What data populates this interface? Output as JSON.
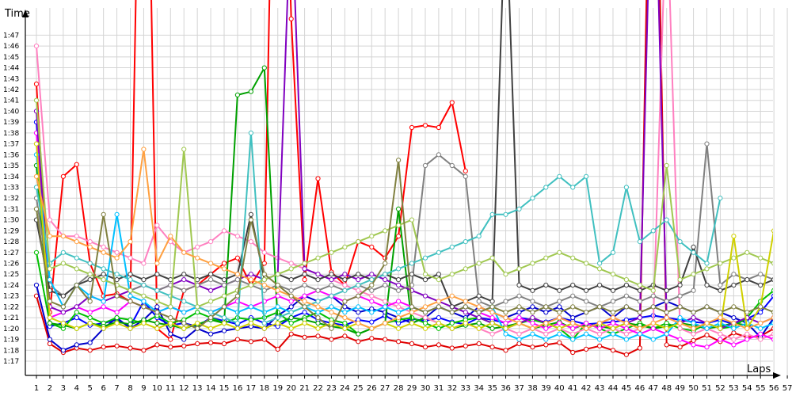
{
  "chart_data": {
    "type": "line",
    "ylabel": "Time",
    "xlabel": "Laps",
    "xlim": [
      1,
      57
    ],
    "ylim": [
      "1:16",
      "1:48"
    ],
    "grid": true,
    "legend": "none",
    "categories": [
      "1",
      "2",
      "3",
      "4",
      "5",
      "6",
      "7",
      "8",
      "9",
      "10",
      "11",
      "12",
      "13",
      "14",
      "15",
      "16",
      "17",
      "18",
      "19",
      "20",
      "21",
      "22",
      "23",
      "24",
      "25",
      "26",
      "27",
      "28",
      "29",
      "30",
      "31",
      "32",
      "33",
      "34",
      "35",
      "36",
      "37",
      "38",
      "39",
      "40",
      "41",
      "42",
      "43",
      "44",
      "45",
      "46",
      "47",
      "48",
      "49",
      "50",
      "51",
      "52",
      "53",
      "54",
      "55",
      "56",
      "57"
    ],
    "y_tick_labels": [
      "1:17",
      "1:18",
      "1:19",
      "1:20",
      "1:21",
      "1:22",
      "1:23",
      "1:24",
      "1:25",
      "1:26",
      "1:27",
      "1:28",
      "1:29",
      "1:30",
      "1:31",
      "1:32",
      "1:33",
      "1:34",
      "1:35",
      "1:36",
      "1:37",
      "1:38",
      "1:39",
      "1:40",
      "1:41",
      "1:42",
      "1:43",
      "1:44",
      "1:45",
      "1:46",
      "1:47"
    ],
    "series": [
      {
        "color": "#ff0000",
        "values": [
          102.5,
          81.5,
          94.0,
          95.1,
          86.0,
          83.0,
          83.2,
          82.5,
          150,
          80.0,
          79.0,
          83.5,
          84.0,
          85.0,
          86.0,
          86.5,
          84.0,
          86.0,
          150,
          108.5,
          84.5,
          93.8,
          85.2,
          84.0,
          88.0,
          87.5,
          86.5,
          88.5,
          98.5,
          98.7,
          98.5,
          100.8,
          94.5,
          null,
          null,
          null,
          null,
          null,
          null,
          null,
          null,
          null,
          null,
          null,
          null,
          null,
          null,
          null,
          null,
          null,
          null,
          null,
          null,
          null,
          null,
          null,
          null
        ]
      },
      {
        "color": "#e00000",
        "values": [
          83.0,
          78.6,
          77.8,
          78.2,
          78.0,
          78.3,
          78.4,
          78.2,
          78.0,
          78.5,
          78.3,
          78.4,
          78.6,
          78.7,
          78.6,
          79.0,
          78.8,
          79.0,
          78.1,
          79.5,
          79.2,
          79.3,
          79.0,
          79.3,
          78.8,
          79.1,
          79.0,
          78.8,
          78.6,
          78.3,
          78.5,
          78.2,
          78.4,
          78.6,
          78.3,
          78.0,
          78.6,
          78.3,
          78.5,
          78.7,
          77.8,
          78.1,
          78.4,
          78.0,
          77.6,
          78.2,
          143,
          78.5,
          78.3,
          78.9,
          79.4,
          78.8,
          79.6,
          79.2,
          79.3,
          80.0,
          85.0
        ]
      },
      {
        "color": "#0000ff",
        "values": [
          99.0,
          80.2,
          80.5,
          81.0,
          80.3,
          80.5,
          80.8,
          80.2,
          82.5,
          81.0,
          80.3,
          80.5,
          80.2,
          81.0,
          80.7,
          80.4,
          81.0,
          80.5,
          80.2,
          81.0,
          81.5,
          80.8,
          80.5,
          80.3,
          80.8,
          80.6,
          81.2,
          80.5,
          80.9,
          80.7,
          81.0,
          80.6,
          80.4,
          81.0,
          80.8,
          80.5,
          81.0,
          80.8,
          80.6,
          81.0,
          80.7,
          80.4,
          80.5,
          80.6,
          80.8,
          81.0,
          81.2,
          81.0,
          80.8,
          80.6,
          80.5,
          80.8,
          80.4,
          80.9,
          81.5,
          83.0,
          80.5
        ]
      },
      {
        "color": "#0000cc",
        "values": [
          84.0,
          79.0,
          78.0,
          78.5,
          78.7,
          80.0,
          81.0,
          80.0,
          80.8,
          82.0,
          79.5,
          79.0,
          80.0,
          79.5,
          79.8,
          80.0,
          80.2,
          80.0,
          81.2,
          82.0,
          83.0,
          82.5,
          83.0,
          82.0,
          81.5,
          81.8,
          81.5,
          81.0,
          80.5,
          81.0,
          82.0,
          81.5,
          81.0,
          82.0,
          81.5,
          81.0,
          81.5,
          82.0,
          81.5,
          82.0,
          81.0,
          81.5,
          82.0,
          81.0,
          82.0,
          81.5,
          82.0,
          82.5,
          82.0,
          81.5,
          82.0,
          81.5,
          81.0,
          80.5,
          79.2,
          81.0,
          82.0
        ]
      },
      {
        "color": "#00c000",
        "values": [
          87.0,
          80.5,
          80.0,
          81.5,
          81.0,
          80.5,
          81.0,
          80.8,
          80.5,
          81.2,
          80.5,
          80.8,
          81.5,
          81.0,
          80.5,
          81.0,
          80.8,
          81.0,
          81.5,
          80.5,
          81.0,
          81.5,
          80.8,
          80.5,
          79.5,
          80.0,
          80.5,
          80.8,
          81.0,
          80.5,
          80.0,
          80.5,
          80.8,
          81.0,
          80.5,
          80.0,
          80.5,
          80.8,
          80.5,
          80.0,
          79.0,
          80.5,
          80.0,
          79.5,
          80.0,
          80.5,
          80.0,
          80.5,
          80.0,
          79.8,
          80.5,
          80.0,
          80.2,
          81.0,
          82.5,
          83.5,
          83.0
        ]
      },
      {
        "color": "#00a000",
        "values": [
          95.0,
          80.5,
          80.3,
          80.0,
          80.5,
          80.2,
          80.6,
          80.4,
          80.8,
          80.5,
          80.3,
          80.0,
          80.4,
          80.8,
          80.5,
          101.5,
          101.8,
          104.0,
          80.5,
          81.0,
          80.8,
          80.5,
          80.2,
          80.0,
          79.5,
          80.0,
          80.5,
          91.0,
          80.5,
          81.0,
          80.5,
          80.0,
          80.3,
          80.5,
          80.0,
          80.2,
          80.5,
          80.0,
          80.3,
          80.6,
          80.0,
          80.4,
          80.2,
          80.0,
          80.5,
          80.3,
          80.0,
          80.2,
          80.5,
          80.3,
          80.0,
          80.2,
          80.5,
          80.3,
          null,
          null,
          null
        ]
      },
      {
        "color": "#ff80c0",
        "values": [
          106.0,
          90.0,
          88.5,
          88.5,
          88.0,
          87.5,
          87.0,
          86.5,
          86.0,
          89.5,
          88.0,
          87.0,
          87.5,
          88.0,
          89.0,
          88.5,
          88.0,
          87.0,
          86.5,
          86.0,
          85.5,
          85.0,
          84.5,
          84.0,
          83.5,
          83.0,
          82.5,
          82.0,
          81.5,
          81.0,
          80.5,
          80.0,
          80.5,
          80.0,
          79.5,
          80.0,
          79.5,
          80.0,
          79.5,
          80.0,
          79.5,
          80.0,
          79.5,
          80.0,
          79.5,
          80.0,
          80.5,
          120,
          80.0,
          79.5,
          80.0,
          79.5,
          79.0,
          79.5,
          79.0,
          79.5,
          79.0
        ]
      },
      {
        "color": "#ff00ff",
        "values": [
          98.0,
          81.0,
          81.5,
          82.0,
          81.5,
          82.0,
          81.5,
          82.5,
          82.0,
          81.5,
          82.0,
          81.5,
          82.0,
          81.5,
          82.0,
          82.5,
          82.0,
          82.5,
          83.0,
          82.5,
          83.0,
          83.5,
          83.0,
          82.5,
          83.0,
          82.5,
          82.0,
          82.5,
          82.0,
          81.5,
          82.0,
          81.5,
          82.0,
          81.5,
          81.0,
          80.5,
          81.0,
          80.5,
          80.0,
          80.5,
          80.0,
          80.5,
          80.0,
          80.5,
          80.0,
          79.5,
          80.0,
          79.5,
          79.0,
          78.5,
          78.3,
          79.0,
          78.5,
          79.0,
          79.5,
          79.0,
          79.5
        ]
      },
      {
        "color": "#8000c0",
        "values": [
          100.0,
          82.0,
          81.5,
          82.0,
          83.0,
          82.5,
          83.0,
          83.5,
          84.0,
          83.5,
          84.0,
          84.5,
          84.0,
          83.5,
          84.0,
          84.5,
          85.0,
          84.5,
          85.0,
          120,
          85.5,
          85.0,
          84.5,
          85.0,
          84.5,
          85.0,
          84.5,
          84.0,
          83.5,
          83.0,
          82.5,
          82.0,
          81.5,
          81.0,
          80.5,
          80.0,
          80.5,
          81.0,
          80.5,
          81.0,
          80.5,
          80.0,
          80.5,
          81.0,
          80.5,
          81.0,
          130,
          81.0,
          80.5,
          81.0,
          80.5,
          80.0,
          80.5,
          81.0,
          80.5,
          81.0,
          80.5
        ]
      },
      {
        "color": "#808080",
        "values": [
          92.0,
          84.0,
          83.0,
          84.0,
          85.0,
          84.5,
          84.0,
          83.5,
          84.0,
          83.5,
          84.0,
          83.5,
          84.0,
          84.5,
          84.0,
          84.5,
          84.0,
          83.5,
          84.0,
          83.5,
          84.0,
          83.5,
          84.0,
          83.5,
          84.0,
          83.5,
          84.0,
          83.5,
          84.0,
          95.0,
          96.0,
          95.0,
          94.0,
          82.5,
          82.0,
          82.5,
          83.0,
          82.5,
          82.0,
          82.5,
          83.0,
          82.5,
          82.0,
          82.5,
          83.0,
          82.5,
          83.0,
          82.5,
          83.0,
          83.5,
          97.0,
          84.0,
          85.0,
          84.5,
          85.0,
          84.5,
          85.0
        ]
      },
      {
        "color": "#404040",
        "values": [
          90.0,
          83.5,
          83.0,
          84.0,
          84.5,
          85.0,
          84.5,
          85.0,
          84.5,
          85.0,
          84.5,
          85.0,
          84.5,
          85.0,
          84.5,
          85.0,
          90.5,
          84.5,
          85.0,
          84.5,
          85.0,
          84.5,
          85.0,
          84.5,
          85.0,
          84.5,
          85.0,
          84.5,
          85.0,
          84.5,
          85.0,
          82.0,
          82.5,
          83.0,
          82.5,
          120,
          84.0,
          83.5,
          84.0,
          83.5,
          84.0,
          83.5,
          84.0,
          83.5,
          84.0,
          83.5,
          84.0,
          83.5,
          84.0,
          87.5,
          84.0,
          83.5,
          84.0,
          84.5,
          84.0,
          84.5,
          84.0
        ]
      },
      {
        "color": "#00c0ff",
        "values": [
          96.0,
          84.5,
          82.0,
          84.0,
          83.0,
          82.5,
          90.5,
          83.0,
          82.5,
          81.5,
          82.0,
          81.5,
          82.0,
          81.5,
          82.0,
          81.5,
          82.0,
          81.5,
          82.0,
          81.5,
          82.0,
          81.5,
          82.0,
          81.5,
          82.0,
          81.5,
          82.0,
          81.5,
          82.0,
          81.5,
          82.0,
          81.5,
          82.0,
          81.5,
          82.0,
          79.5,
          79.0,
          79.5,
          79.0,
          79.5,
          79.0,
          79.5,
          79.0,
          79.5,
          79.0,
          79.5,
          79.0,
          79.5,
          81.0,
          80.5,
          80.0,
          80.5,
          80.0,
          80.5,
          80.0,
          80.5,
          80.0
        ]
      },
      {
        "color": "#40c0c0",
        "values": [
          93.0,
          86.0,
          87.0,
          86.5,
          86.0,
          85.5,
          85.0,
          84.5,
          84.0,
          83.5,
          83.0,
          82.5,
          82.0,
          81.5,
          81.0,
          80.5,
          98.0,
          80.5,
          81.0,
          81.5,
          82.0,
          82.5,
          83.0,
          83.5,
          84.0,
          84.5,
          85.0,
          85.5,
          86.0,
          86.5,
          87.0,
          87.5,
          88.0,
          88.5,
          90.5,
          90.5,
          91.0,
          92.0,
          93.0,
          94.0,
          93.0,
          94.0,
          86.0,
          87.0,
          93.0,
          88.0,
          89.0,
          90.0,
          88.0,
          87.0,
          86.0,
          92.0,
          null,
          null,
          null,
          null,
          null
        ]
      },
      {
        "color": "#a0c850",
        "values": [
          101.0,
          85.5,
          86.0,
          85.5,
          85.0,
          84.5,
          84.0,
          83.5,
          83.0,
          82.5,
          82.0,
          96.5,
          82.0,
          82.5,
          83.0,
          83.5,
          84.0,
          84.5,
          85.0,
          85.5,
          86.0,
          86.5,
          87.0,
          87.5,
          88.0,
          88.5,
          89.0,
          89.5,
          90.0,
          85.0,
          84.5,
          85.0,
          85.5,
          86.0,
          86.5,
          85.0,
          85.5,
          86.0,
          86.5,
          87.0,
          86.5,
          86.0,
          85.5,
          85.0,
          84.5,
          84.0,
          83.5,
          95.0,
          84.5,
          85.0,
          85.5,
          86.0,
          86.5,
          87.0,
          86.5,
          86.0,
          85.5
        ]
      },
      {
        "color": "#d0d000",
        "values": [
          97.0,
          81.0,
          80.5,
          80.0,
          80.5,
          80.0,
          80.5,
          80.0,
          80.5,
          80.0,
          80.5,
          80.0,
          80.5,
          80.0,
          80.5,
          80.0,
          80.5,
          80.0,
          80.5,
          80.0,
          80.5,
          80.0,
          80.5,
          80.0,
          80.5,
          80.0,
          80.5,
          80.0,
          80.5,
          80.0,
          80.5,
          80.0,
          80.5,
          80.0,
          80.5,
          80.0,
          80.5,
          80.0,
          80.5,
          80.0,
          80.5,
          80.0,
          80.5,
          80.0,
          80.5,
          80.0,
          80.5,
          80.0,
          80.5,
          80.0,
          80.5,
          80.0,
          88.5,
          80.0,
          82.0,
          89.0,
          null
        ]
      },
      {
        "color": "#ffa040",
        "values": [
          94.0,
          88.5,
          88.5,
          88.0,
          87.5,
          87.0,
          86.5,
          88.0,
          96.5,
          86.0,
          88.5,
          87.0,
          86.5,
          86.0,
          85.5,
          85.0,
          84.5,
          84.0,
          83.5,
          83.0,
          82.5,
          82.0,
          81.5,
          81.0,
          80.5,
          80.0,
          80.5,
          81.0,
          81.5,
          82.0,
          82.5,
          83.0,
          82.5,
          82.0,
          81.5,
          81.0,
          80.5,
          80.0,
          80.5,
          81.0,
          80.5,
          80.0,
          80.5,
          81.0,
          80.5,
          80.0,
          80.5,
          81.0,
          80.5,
          80.0,
          80.5,
          81.0,
          80.5,
          80.0,
          80.5,
          81.0,
          80.5
        ]
      },
      {
        "color": "#808040",
        "values": [
          91.0,
          82.5,
          82.0,
          84.0,
          82.5,
          90.5,
          83.0,
          82.5,
          82.0,
          81.5,
          81.0,
          80.5,
          80.0,
          81.0,
          82.0,
          83.0,
          90.0,
          85.0,
          84.0,
          83.0,
          82.0,
          81.0,
          80.0,
          82.5,
          83.0,
          84.0,
          86.0,
          95.5,
          82.0,
          81.5,
          82.0,
          81.5,
          82.0,
          81.5,
          82.0,
          81.5,
          82.0,
          81.5,
          82.0,
          81.5,
          82.0,
          81.5,
          82.0,
          81.5,
          82.0,
          81.5,
          82.0,
          81.5,
          82.0,
          81.5,
          82.0,
          81.5,
          82.0,
          81.5,
          82.0,
          81.5,
          82.0
        ]
      }
    ]
  }
}
